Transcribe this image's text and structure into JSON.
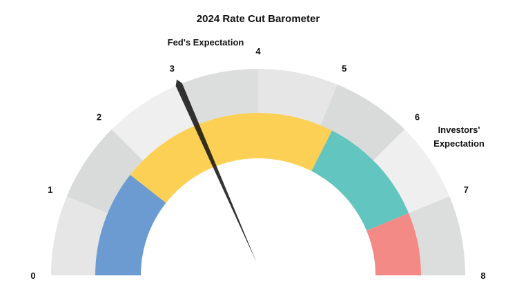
{
  "chart_data": {
    "type": "gauge",
    "title": "2024 Rate Cut Barometer",
    "scale": {
      "min": 0,
      "max": 8,
      "ticks": [
        "0",
        "1",
        "2",
        "3",
        "4",
        "5",
        "6",
        "7",
        "8"
      ]
    },
    "outer_band_colors": [
      "#e6e6e6",
      "#d9dada",
      "#efefef",
      "#dcdddd",
      "#e6e6e6",
      "#d9dada",
      "#efefef",
      "#dcdddd"
    ],
    "inner_bands": [
      {
        "from": 0,
        "to": 1.7,
        "color": "#6b9bd1"
      },
      {
        "from": 1.7,
        "to": 5.2,
        "color": "#fcd055"
      },
      {
        "from": 5.2,
        "to": 7.0,
        "color": "#62c5bf"
      },
      {
        "from": 7.0,
        "to": 8.0,
        "color": "#f48a86"
      }
    ],
    "needle": {
      "value": 3.0,
      "color": "#111111"
    },
    "annotations": [
      {
        "text": "Fed's Expectation",
        "value": 3
      },
      {
        "text": "Investors'",
        "value": 6
      },
      {
        "text": "Expectation",
        "value": 6
      }
    ]
  }
}
